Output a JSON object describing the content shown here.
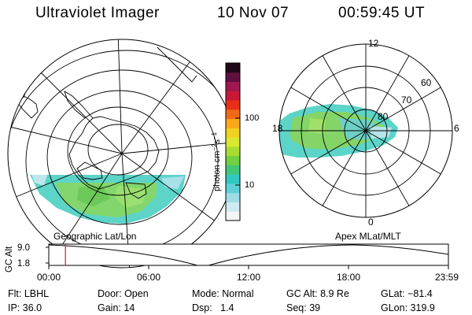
{
  "header": {
    "title": "Ultraviolet Imager",
    "date": "10 Nov 07",
    "time": "00:59:45 UT"
  },
  "left_map": {
    "label": "Geographic Lat/Lon"
  },
  "right_map": {
    "label": "Apex MLat/MLT",
    "lat_labels": [
      "80",
      "70",
      "60"
    ],
    "mlt_labels": {
      "top": "12",
      "left": "18",
      "right": "6",
      "bottom": "0"
    }
  },
  "colorbar": {
    "unit_prefix": "photon cm",
    "unit_exp1": "−2",
    "unit_mid": "s",
    "unit_exp2": "−1",
    "ticks": [
      "100",
      "10"
    ],
    "colors": [
      "#f4f4f4",
      "#cfeaf0",
      "#9fdce6",
      "#5fd0d8",
      "#30c8c0",
      "#40c878",
      "#70d040",
      "#a8dc30",
      "#d8e830",
      "#f0d020",
      "#f8a818",
      "#f06818",
      "#e83018",
      "#c81838",
      "#a01850",
      "#601040",
      "#200818"
    ]
  },
  "timeline": {
    "y_axis_label": "GC Alt",
    "y_ticks": [
      "9.0",
      "1.8"
    ],
    "x_ticks": [
      "00:00",
      "06:00",
      "12:00",
      "18:00",
      "23:59"
    ],
    "current_time_hours": 1.0
  },
  "info": {
    "row1": [
      {
        "key": "Flt:",
        "value": "LBHL"
      },
      {
        "key": "Door:",
        "value": "Open"
      },
      {
        "key": "Mode:",
        "value": "Normal"
      },
      {
        "key": "GC Alt:",
        "value": "8.9 Re"
      },
      {
        "key": "GLat:",
        "value": "−81.4"
      }
    ],
    "row2": [
      {
        "key": "IP:",
        "value": "36.0"
      },
      {
        "key": "Gain:",
        "value": "14"
      },
      {
        "key": "Dsp:",
        "value": "1.4"
      },
      {
        "key": "Seq:",
        "value": "39"
      },
      {
        "key": "GLon:",
        "value": "319.9"
      }
    ]
  }
}
